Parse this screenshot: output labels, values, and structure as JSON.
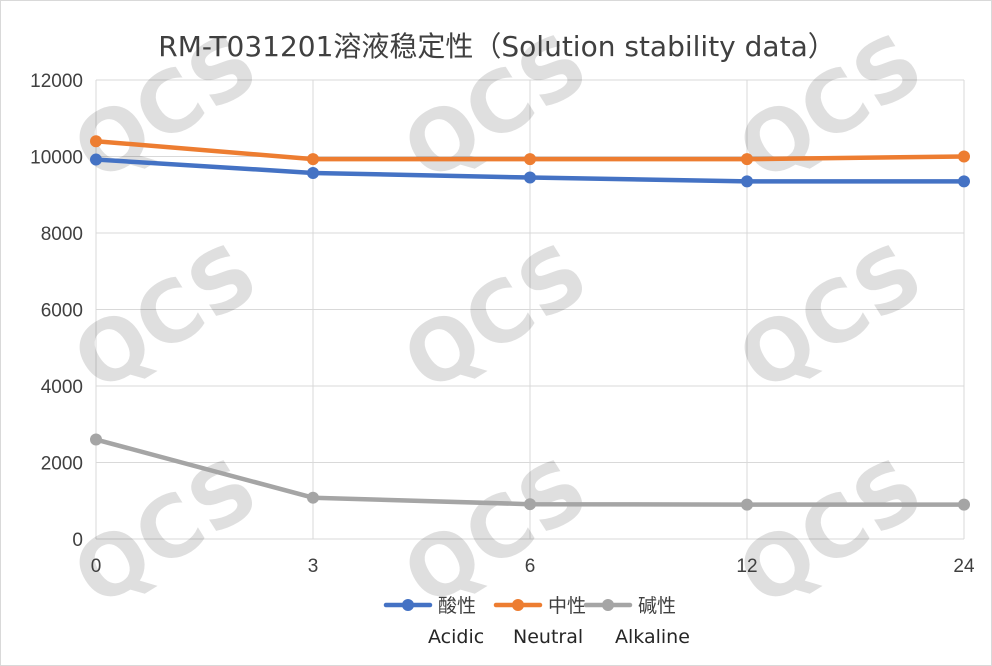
{
  "chart_data": {
    "type": "line",
    "title": "RM-T031201溶液稳定性（Solution stability data）",
    "xlabel": "",
    "ylabel": "",
    "categories": [
      "0",
      "3",
      "6",
      "12",
      "24"
    ],
    "ylim": [
      0,
      12000
    ],
    "yticks": [
      0,
      2000,
      4000,
      6000,
      8000,
      10000,
      12000
    ],
    "grid": true,
    "legend_position": "bottom",
    "series": [
      {
        "name": "酸性",
        "color": "#4472c4",
        "values": [
          9920,
          9570,
          9450,
          9350,
          9350
        ]
      },
      {
        "name": "中性",
        "color": "#ed7d31",
        "values": [
          10400,
          9930,
          9930,
          9930,
          10000
        ]
      },
      {
        "name": "碱性",
        "color": "#a5a5a5",
        "values": [
          2600,
          1080,
          910,
          900,
          900
        ]
      }
    ],
    "legend_subtitles": [
      "Acidic",
      "Neutral",
      "Alkaline"
    ],
    "watermark": "QCS"
  }
}
